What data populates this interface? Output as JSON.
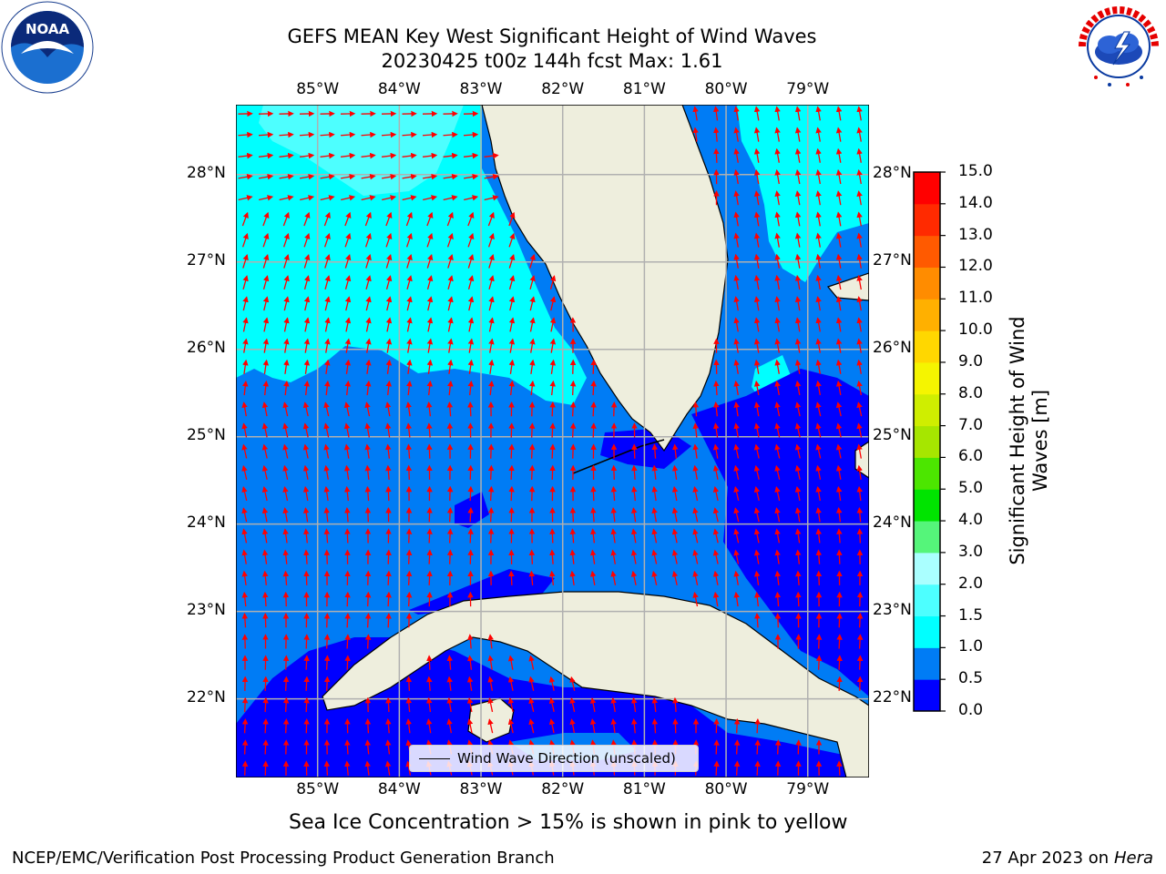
{
  "header": {
    "title_line1": "GEFS MEAN Key West Significant Height of Wind Waves",
    "title_line2": "20230425 t00z 144h fcst   Max: 1.61"
  },
  "logos": {
    "left": {
      "name": "NOAA",
      "ring_text": "NATIONAL OCEANIC AND ATMOSPHERIC ADMINISTRATION · U.S. DEPARTMENT OF COMMERCE"
    },
    "right": {
      "name": "NATIONAL WEATHER SERVICE"
    }
  },
  "axes": {
    "lon_labels": [
      "85°W",
      "84°W",
      "83°W",
      "82°W",
      "81°W",
      "80°W",
      "79°W"
    ],
    "lat_labels": [
      "28°N",
      "27°N",
      "26°N",
      "25°N",
      "24°N",
      "23°N",
      "22°N"
    ],
    "lon_range": [
      -86.0,
      -78.25
    ],
    "lat_range": [
      21.1,
      28.8
    ]
  },
  "legend": {
    "label": "Wind Wave Direction (unscaled)"
  },
  "colorbar": {
    "label_line1": "Significant Height of Wind",
    "label_line2": "Waves [m]",
    "ticks": [
      "0.0",
      "0.5",
      "1.0",
      "1.5",
      "2.0",
      "3.0",
      "4.0",
      "5.0",
      "6.0",
      "7.0",
      "8.0",
      "9.0",
      "10.0",
      "11.0",
      "12.0",
      "13.0",
      "14.0",
      "15.0"
    ],
    "bins": [
      0.0,
      0.5,
      1.0,
      1.5,
      2.0,
      3.0,
      4.0,
      5.0,
      6.0,
      7.0,
      8.0,
      9.0,
      10.0,
      11.0,
      12.0,
      13.0,
      14.0,
      15.0
    ],
    "colors": [
      "#0000ff",
      "#007cf5",
      "#00ffff",
      "#4dffff",
      "#aaffff",
      "#55f57a",
      "#00e400",
      "#4ce600",
      "#a6e600",
      "#cfee00",
      "#f5f500",
      "#ffd700",
      "#ffb000",
      "#ff8c00",
      "#ff5a00",
      "#ff2a00",
      "#ff0000"
    ]
  },
  "note": "Sea Ice Concentration > 15% is shown in pink to yellow",
  "footer": {
    "left": "NCEP/EMC/Verification Post Processing Product Generation Branch",
    "date": "27 Apr 2023",
    "on": "on",
    "machine": "Hera"
  },
  "colors": {
    "land": "#eeeedd",
    "arrow": "#ff0000",
    "grid": "#b0b0b0"
  }
}
